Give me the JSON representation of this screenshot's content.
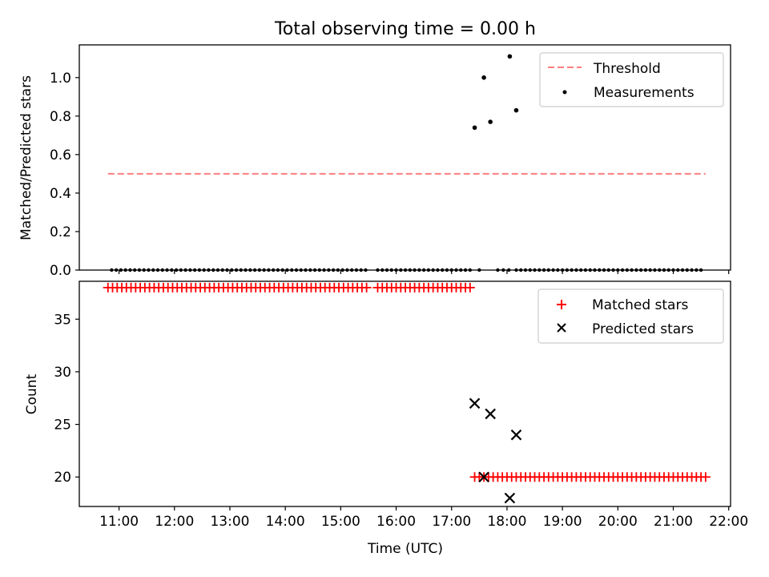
{
  "figure": {
    "title": "Total observing time = 0.00 h",
    "xlabel": "Time (UTC)",
    "xticks": [
      "11:00",
      "12:00",
      "13:00",
      "14:00",
      "15:00",
      "16:00",
      "17:00",
      "18:00",
      "19:00",
      "20:00",
      "21:00",
      "22:00"
    ]
  },
  "chart_data": [
    {
      "type": "scatter",
      "ylabel": "Matched/Predicted stars",
      "xlim": [
        "10:17",
        "22:02"
      ],
      "ylim": [
        0,
        1.17
      ],
      "yticks": [
        "0.0",
        "0.2",
        "0.4",
        "0.6",
        "0.8",
        "1.0"
      ],
      "legend": {
        "position": "top-right",
        "entries": [
          "Threshold",
          "Measurements"
        ]
      },
      "threshold": {
        "name": "Threshold",
        "value": 0.5,
        "x": [
          "10:48",
          "21:35"
        ],
        "color": "#ff7f7f"
      },
      "series": [
        {
          "name": "Measurements",
          "color": "#000000",
          "zero_x_ranges": [
            [
              "10:52",
              "15:30"
            ],
            [
              "15:40",
              "17:22"
            ],
            [
              "18:10",
              "21:34"
            ]
          ],
          "zero_x_extra": [
            "17:30",
            "17:50",
            "17:56",
            "18:02"
          ],
          "points": [
            {
              "x": "17:25",
              "y": 0.74
            },
            {
              "x": "17:35",
              "y": 1.0
            },
            {
              "x": "17:42",
              "y": 0.77
            },
            {
              "x": "18:03",
              "y": 1.11
            },
            {
              "x": "18:10",
              "y": 0.83
            }
          ]
        }
      ]
    },
    {
      "type": "scatter",
      "ylabel": "Count",
      "xlim": [
        "10:17",
        "22:02"
      ],
      "ylim": [
        17.2,
        38.6
      ],
      "yticks": [
        "20",
        "25",
        "30",
        "35"
      ],
      "legend": {
        "position": "top-right",
        "entries": [
          "Matched stars",
          "Predicted stars"
        ]
      },
      "series": [
        {
          "name": "Matched stars",
          "marker": "plus",
          "color": "#ff0000",
          "constant_runs": [
            {
              "y": 38,
              "x_range": [
                "10:48",
                "15:30"
              ]
            },
            {
              "y": 38,
              "x_range": [
                "15:40",
                "17:22"
              ]
            },
            {
              "y": 20,
              "x_range": [
                "17:25",
                "21:35"
              ]
            }
          ]
        },
        {
          "name": "Predicted stars",
          "marker": "x",
          "color": "#000000",
          "points": [
            {
              "x": "17:25",
              "y": 27
            },
            {
              "x": "17:35",
              "y": 20
            },
            {
              "x": "17:42",
              "y": 26
            },
            {
              "x": "18:03",
              "y": 18
            },
            {
              "x": "18:10",
              "y": 24
            }
          ]
        }
      ]
    }
  ]
}
